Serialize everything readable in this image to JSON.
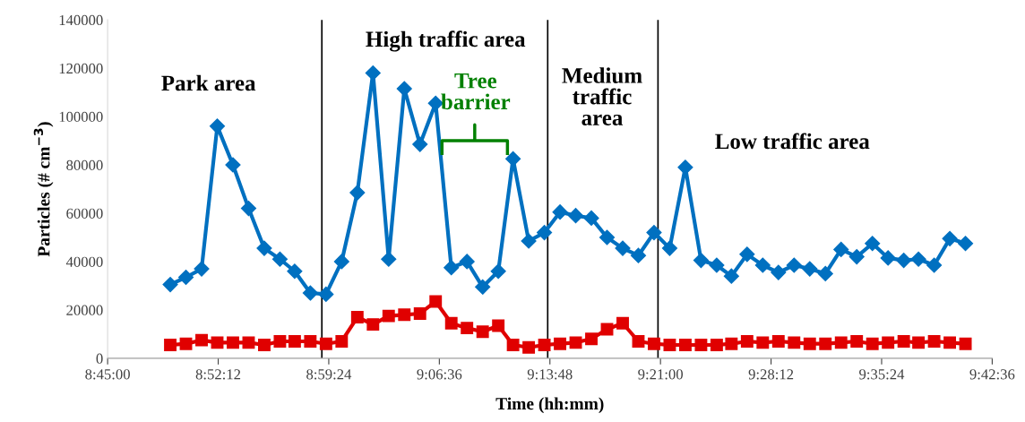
{
  "chart_data": {
    "type": "line",
    "xlabel": "Time (hh:mm)",
    "ylabel": "Particles (# cm$^{−3}$)",
    "x": [
      8.818,
      8.835,
      8.852,
      8.869,
      8.886,
      8.903,
      8.92,
      8.937,
      8.953,
      8.97,
      8.987,
      9.004,
      9.021,
      9.038,
      9.055,
      9.072,
      9.089,
      9.106,
      9.123,
      9.14,
      9.157,
      9.174,
      9.19,
      9.207,
      9.224,
      9.241,
      9.258,
      9.275,
      9.292,
      9.309,
      9.326,
      9.343,
      9.36,
      9.377,
      9.394,
      9.411,
      9.427,
      9.444,
      9.461,
      9.478,
      9.495,
      9.512,
      9.529,
      9.546,
      9.563,
      9.58,
      9.597,
      9.614,
      9.63,
      9.647,
      9.664,
      9.681
    ],
    "series": [
      {
        "color": "#0070c0",
        "marker": "diamond",
        "values": [
          30500,
          33500,
          37000,
          96000,
          80000,
          62000,
          45500,
          41000,
          36000,
          27000,
          26500,
          40000,
          68500,
          118000,
          41000,
          111500,
          88500,
          105500,
          37500,
          40000,
          29500,
          36000,
          82500,
          48500,
          52000,
          60500,
          59000,
          58000,
          50000,
          45500,
          42500,
          52000,
          45500,
          79000,
          40500,
          38500,
          34000,
          43000,
          38500,
          35500,
          38500,
          37000,
          35000,
          45000,
          42000,
          47500,
          41500,
          40500,
          41000,
          38500,
          49500,
          47500
        ]
      },
      {
        "color": "#e00000",
        "marker": "square",
        "values": [
          5500,
          6000,
          7500,
          6500,
          6500,
          6500,
          5500,
          7000,
          7000,
          7000,
          6000,
          7000,
          17000,
          14000,
          17500,
          18000,
          18500,
          23500,
          14500,
          12500,
          11000,
          13500,
          5500,
          4500,
          5500,
          6000,
          6500,
          8000,
          12000,
          14500,
          7000,
          6000,
          5500,
          5500,
          5500,
          5500,
          6000,
          7000,
          6500,
          7000,
          6500,
          6000,
          6000,
          6500,
          7000,
          6000,
          6500,
          7000,
          6500,
          7000,
          6500,
          6000
        ]
      }
    ],
    "xlim": [
      8.75,
      9.71
    ],
    "xticks": [
      {
        "value": 8.75,
        "label": "8:45:00"
      },
      {
        "value": 8.87,
        "label": "8:52:12"
      },
      {
        "value": 8.99,
        "label": "8:59:24"
      },
      {
        "value": 9.11,
        "label": "9:06:36"
      },
      {
        "value": 9.23,
        "label": "9:13:48"
      },
      {
        "value": 9.35,
        "label": "9:21:00"
      },
      {
        "value": 9.47,
        "label": "9:28:12"
      },
      {
        "value": 9.59,
        "label": "9:35:24"
      },
      {
        "value": 9.71,
        "label": "9:42:36"
      }
    ],
    "ylim": [
      0,
      140000
    ],
    "yticks": [
      0,
      20000,
      40000,
      60000,
      80000,
      100000,
      120000,
      140000
    ],
    "ref_lines": [
      {
        "axis": "x",
        "value": 8.9825,
        "color": "#000000"
      },
      {
        "axis": "x",
        "value": 9.2276,
        "color": "#000000"
      },
      {
        "axis": "x",
        "value": 9.3473,
        "color": "#000000"
      }
    ],
    "annotations": [
      "Park area",
      "High traffic area",
      "Tree\nbarrier",
      "Medium\ntraffic\narea",
      "Low traffic area"
    ],
    "grid": false,
    "legend": false,
    "line_style": "solid"
  }
}
